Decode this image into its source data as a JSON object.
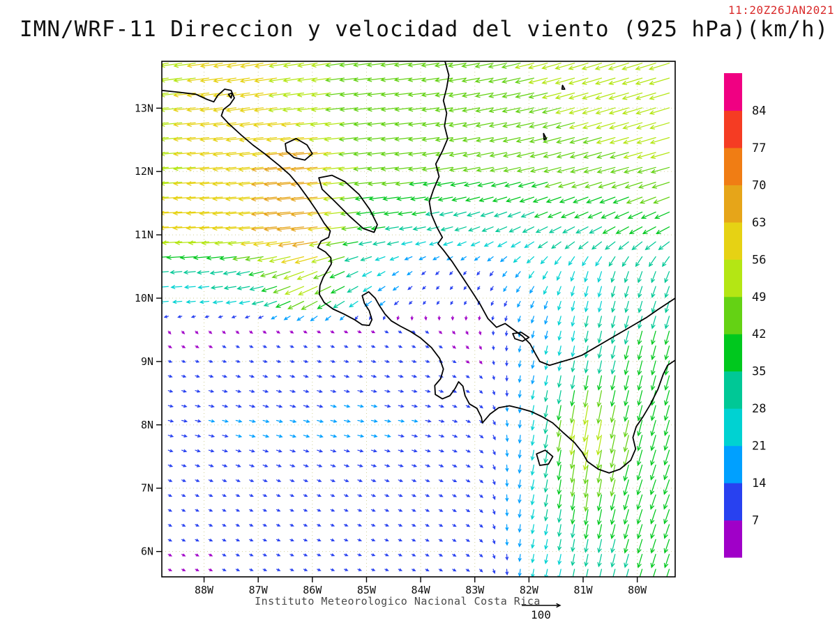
{
  "header": {
    "title": "IMN/WRF-11 Direccion y velocidad del viento (925 hPa)(km/h)",
    "timestamp": "11:20Z26JAN2021",
    "timestamp_color": "#d92b2b"
  },
  "footer": {
    "institute": "Instituto Meteorologico Nacional Costa Rica",
    "reference_value": "100"
  },
  "chart_data": {
    "type": "vector_field_map",
    "title": "IMN/WRF-11 Direccion y velocidad del viento (925 hPa)(km/h)",
    "valid_time": "11:20Z26JAN2021",
    "units": "km/h",
    "reference_speed_kmh": 100,
    "domain": {
      "lon_min": -88.78,
      "lon_max": -79.3,
      "lat_min": 5.6,
      "lat_max": 13.74
    },
    "x_axis": {
      "labels": [
        "88W",
        "87W",
        "86W",
        "85W",
        "84W",
        "83W",
        "82W",
        "81W",
        "80W"
      ],
      "lons": [
        -88,
        -87,
        -86,
        -85,
        -84,
        -83,
        -82,
        -81,
        -80
      ]
    },
    "y_axis": {
      "labels": [
        "13N",
        "12N",
        "11N",
        "10N",
        "9N",
        "8N",
        "7N",
        "6N"
      ],
      "lats": [
        13,
        12,
        11,
        10,
        9,
        8,
        7,
        6
      ]
    },
    "colorbar": {
      "levels": [
        7,
        14,
        21,
        28,
        35,
        42,
        49,
        56,
        63,
        70,
        77,
        84
      ],
      "colors": [
        "#a000c8",
        "#2841f0",
        "#00a0ff",
        "#00d2d2",
        "#00c896",
        "#00c81e",
        "#64d214",
        "#b4e614",
        "#e6d214",
        "#e6a519",
        "#f07d14",
        "#f53c23",
        "#f00082"
      ]
    },
    "wind_grid": {
      "comment": "u=eastward, v=northward wind components in km/h on coarse lat/lon grid, bilinearly interpolated for display",
      "lats": [
        6,
        7,
        8,
        9,
        9.5,
        10,
        10.5,
        11,
        12,
        13,
        14
      ],
      "lons": [
        -89,
        -88,
        -87,
        -86,
        -85,
        -84,
        -83,
        -82,
        -81,
        -80,
        -79
      ],
      "uv": [
        [
          [
            6,
            -3
          ],
          [
            6,
            -3
          ],
          [
            7,
            -3
          ],
          [
            7,
            -3
          ],
          [
            8,
            -3
          ],
          [
            8,
            -4
          ],
          [
            8,
            -5
          ],
          [
            -4,
            -20
          ],
          [
            -6,
            -30
          ],
          [
            -10,
            -34
          ],
          [
            -12,
            -34
          ]
        ],
        [
          [
            8,
            -4
          ],
          [
            9,
            -4
          ],
          [
            9,
            -4
          ],
          [
            9,
            -4
          ],
          [
            10,
            -4
          ],
          [
            9,
            -4
          ],
          [
            9,
            -5
          ],
          [
            -5,
            -24
          ],
          [
            -6,
            -44
          ],
          [
            -12,
            -38
          ],
          [
            -14,
            -36
          ]
        ],
        [
          [
            12,
            -3
          ],
          [
            14,
            -3
          ],
          [
            15,
            -4
          ],
          [
            15,
            -4
          ],
          [
            15,
            -3
          ],
          [
            14,
            -3
          ],
          [
            10,
            -5
          ],
          [
            -4,
            -22
          ],
          [
            -10,
            -58
          ],
          [
            -10,
            -40
          ],
          [
            -12,
            -38
          ]
        ],
        [
          [
            8,
            -3
          ],
          [
            9,
            -3
          ],
          [
            10,
            -3
          ],
          [
            10,
            -3
          ],
          [
            11,
            -3
          ],
          [
            10,
            -3
          ],
          [
            5,
            -4
          ],
          [
            -4,
            -18
          ],
          [
            -6,
            -30
          ],
          [
            -9,
            -36
          ],
          [
            -10,
            -36
          ]
        ],
        [
          [
            2,
            -3
          ],
          [
            3,
            -3
          ],
          [
            4,
            -3
          ],
          [
            5,
            -3
          ],
          [
            6,
            -3
          ],
          [
            6,
            -4
          ],
          [
            2,
            -5
          ],
          [
            -4,
            -16
          ],
          [
            -6,
            -28
          ],
          [
            -9,
            -34
          ],
          [
            -10,
            -34
          ]
        ],
        [
          [
            -26,
            -2
          ],
          [
            -25,
            -2
          ],
          [
            -30,
            -6
          ],
          [
            -48,
            -24
          ],
          [
            -20,
            -14
          ],
          [
            -6,
            -6
          ],
          [
            -4,
            -7
          ],
          [
            -8,
            -16
          ],
          [
            -6,
            -26
          ],
          [
            -8,
            -28
          ],
          [
            -10,
            -28
          ]
        ],
        [
          [
            -30,
            -2
          ],
          [
            -30,
            -3
          ],
          [
            -35,
            -8
          ],
          [
            -55,
            -20
          ],
          [
            -25,
            -12
          ],
          [
            -10,
            -8
          ],
          [
            -6,
            -8
          ],
          [
            -14,
            -16
          ],
          [
            -8,
            -26
          ],
          [
            -10,
            -28
          ],
          [
            -12,
            -28
          ]
        ],
        [
          [
            -56,
            -3
          ],
          [
            -58,
            -3
          ],
          [
            -62,
            -5
          ],
          [
            -70,
            -8
          ],
          [
            -35,
            -5
          ],
          [
            -30,
            -6
          ],
          [
            -26,
            -10
          ],
          [
            -26,
            -14
          ],
          [
            -28,
            -16
          ],
          [
            -30,
            -18
          ],
          [
            -32,
            -18
          ]
        ],
        [
          [
            -55,
            -4
          ],
          [
            -56,
            -4
          ],
          [
            -62,
            -6
          ],
          [
            -70,
            -6
          ],
          [
            -46,
            -5
          ],
          [
            -44,
            -5
          ],
          [
            -42,
            -8
          ],
          [
            -42,
            -10
          ],
          [
            -44,
            -12
          ],
          [
            -46,
            -13
          ],
          [
            -46,
            -13
          ]
        ],
        [
          [
            -55,
            -6
          ],
          [
            -56,
            -6
          ],
          [
            -60,
            -8
          ],
          [
            -52,
            -6
          ],
          [
            -45,
            -5
          ],
          [
            -44,
            -5
          ],
          [
            -44,
            -8
          ],
          [
            -46,
            -10
          ],
          [
            -48,
            -14
          ],
          [
            -50,
            -15
          ],
          [
            -50,
            -15
          ]
        ],
        [
          [
            -55,
            -8
          ],
          [
            -55,
            -8
          ],
          [
            -58,
            -10
          ],
          [
            -50,
            -8
          ],
          [
            -46,
            -6
          ],
          [
            -45,
            -6
          ],
          [
            -46,
            -8
          ],
          [
            -48,
            -12
          ],
          [
            -50,
            -15
          ],
          [
            -52,
            -16
          ],
          [
            -52,
            -16
          ]
        ]
      ]
    }
  },
  "map": {
    "coastlines": [
      [
        [
          -88.78,
          13.28
        ],
        [
          -88.45,
          13.25
        ],
        [
          -88.15,
          13.22
        ],
        [
          -87.95,
          13.14
        ],
        [
          -87.82,
          13.1
        ],
        [
          -87.75,
          13.2
        ],
        [
          -87.62,
          13.3
        ],
        [
          -87.5,
          13.28
        ],
        [
          -87.44,
          13.16
        ],
        [
          -87.52,
          13.06
        ],
        [
          -87.64,
          12.98
        ],
        [
          -87.68,
          12.88
        ],
        [
          -87.55,
          12.76
        ],
        [
          -87.32,
          12.58
        ],
        [
          -87.1,
          12.42
        ],
        [
          -86.88,
          12.28
        ],
        [
          -86.62,
          12.1
        ],
        [
          -86.42,
          11.95
        ],
        [
          -86.25,
          11.78
        ],
        [
          -86.08,
          11.58
        ],
        [
          -85.92,
          11.38
        ],
        [
          -85.78,
          11.18
        ],
        [
          -85.67,
          11.06
        ],
        [
          -85.7,
          10.96
        ],
        [
          -85.84,
          10.9
        ],
        [
          -85.9,
          10.8
        ],
        [
          -85.76,
          10.73
        ],
        [
          -85.66,
          10.64
        ],
        [
          -85.65,
          10.54
        ],
        [
          -85.72,
          10.44
        ],
        [
          -85.8,
          10.33
        ],
        [
          -85.86,
          10.2
        ],
        [
          -85.87,
          10.06
        ],
        [
          -85.78,
          9.93
        ],
        [
          -85.62,
          9.83
        ],
        [
          -85.42,
          9.75
        ],
        [
          -85.22,
          9.66
        ],
        [
          -85.08,
          9.58
        ],
        [
          -84.95,
          9.57
        ],
        [
          -84.9,
          9.66
        ],
        [
          -84.95,
          9.8
        ],
        [
          -85.04,
          9.92
        ],
        [
          -85.08,
          10.04
        ],
        [
          -84.96,
          10.1
        ],
        [
          -84.84,
          10.0
        ],
        [
          -84.76,
          9.88
        ],
        [
          -84.66,
          9.75
        ],
        [
          -84.54,
          9.64
        ],
        [
          -84.38,
          9.56
        ],
        [
          -84.2,
          9.48
        ],
        [
          -84.0,
          9.37
        ],
        [
          -83.8,
          9.22
        ],
        [
          -83.65,
          9.05
        ],
        [
          -83.58,
          8.88
        ],
        [
          -83.63,
          8.73
        ],
        [
          -83.74,
          8.62
        ],
        [
          -83.73,
          8.48
        ],
        [
          -83.6,
          8.41
        ],
        [
          -83.46,
          8.46
        ],
        [
          -83.36,
          8.58
        ],
        [
          -83.3,
          8.68
        ],
        [
          -83.22,
          8.61
        ],
        [
          -83.18,
          8.46
        ],
        [
          -83.1,
          8.33
        ],
        [
          -82.96,
          8.26
        ],
        [
          -82.88,
          8.12
        ],
        [
          -82.86,
          8.03
        ],
        [
          -82.72,
          8.17
        ],
        [
          -82.56,
          8.27
        ],
        [
          -82.36,
          8.3
        ],
        [
          -82.16,
          8.26
        ],
        [
          -81.96,
          8.21
        ],
        [
          -81.76,
          8.13
        ],
        [
          -81.56,
          8.03
        ],
        [
          -81.36,
          7.87
        ],
        [
          -81.16,
          7.72
        ],
        [
          -81.02,
          7.57
        ],
        [
          -80.92,
          7.42
        ],
        [
          -80.72,
          7.3
        ],
        [
          -80.52,
          7.24
        ],
        [
          -80.32,
          7.3
        ],
        [
          -80.12,
          7.44
        ],
        [
          -80.03,
          7.62
        ],
        [
          -80.08,
          7.8
        ],
        [
          -80.02,
          7.97
        ],
        [
          -79.9,
          8.12
        ],
        [
          -79.76,
          8.32
        ],
        [
          -79.62,
          8.56
        ],
        [
          -79.52,
          8.8
        ],
        [
          -79.44,
          8.94
        ],
        [
          -79.3,
          9.02
        ]
      ],
      [
        [
          -83.55,
          13.74
        ],
        [
          -83.48,
          13.52
        ],
        [
          -83.52,
          13.32
        ],
        [
          -83.58,
          13.12
        ],
        [
          -83.52,
          12.92
        ],
        [
          -83.56,
          12.72
        ],
        [
          -83.5,
          12.52
        ],
        [
          -83.6,
          12.32
        ],
        [
          -83.72,
          12.12
        ],
        [
          -83.66,
          11.92
        ],
        [
          -83.76,
          11.72
        ],
        [
          -83.84,
          11.52
        ],
        [
          -83.8,
          11.32
        ],
        [
          -83.7,
          11.12
        ],
        [
          -83.6,
          10.96
        ],
        [
          -83.68,
          10.86
        ],
        [
          -83.58,
          10.76
        ],
        [
          -83.42,
          10.58
        ],
        [
          -83.22,
          10.32
        ],
        [
          -83.02,
          10.06
        ],
        [
          -82.9,
          9.9
        ],
        [
          -82.76,
          9.68
        ],
        [
          -82.6,
          9.54
        ],
        [
          -82.44,
          9.6
        ],
        [
          -82.28,
          9.5
        ],
        [
          -82.12,
          9.4
        ],
        [
          -81.98,
          9.28
        ],
        [
          -81.88,
          9.12
        ],
        [
          -81.8,
          9.0
        ],
        [
          -81.62,
          8.94
        ],
        [
          -81.42,
          8.99
        ],
        [
          -81.22,
          9.04
        ],
        [
          -81.02,
          9.1
        ],
        [
          -80.82,
          9.2
        ],
        [
          -80.62,
          9.3
        ],
        [
          -80.42,
          9.4
        ],
        [
          -80.22,
          9.5
        ],
        [
          -80.02,
          9.6
        ],
        [
          -79.82,
          9.7
        ],
        [
          -79.62,
          9.82
        ],
        [
          -79.44,
          9.92
        ],
        [
          -79.3,
          10.0
        ]
      ]
    ],
    "islands_lakes": [
      [
        [
          -85.88,
          11.9
        ],
        [
          -85.64,
          11.94
        ],
        [
          -85.4,
          11.84
        ],
        [
          -85.14,
          11.64
        ],
        [
          -84.94,
          11.4
        ],
        [
          -84.8,
          11.16
        ],
        [
          -84.86,
          11.04
        ],
        [
          -85.06,
          11.1
        ],
        [
          -85.32,
          11.3
        ],
        [
          -85.6,
          11.54
        ],
        [
          -85.82,
          11.72
        ]
      ],
      [
        [
          -86.5,
          12.44
        ],
        [
          -86.3,
          12.52
        ],
        [
          -86.1,
          12.42
        ],
        [
          -86.0,
          12.28
        ],
        [
          -86.14,
          12.18
        ],
        [
          -86.34,
          12.22
        ],
        [
          -86.48,
          12.32
        ]
      ],
      [
        [
          -81.86,
          7.54
        ],
        [
          -81.7,
          7.6
        ],
        [
          -81.56,
          7.5
        ],
        [
          -81.64,
          7.38
        ],
        [
          -81.8,
          7.36
        ]
      ],
      [
        [
          -81.73,
          12.6
        ],
        [
          -81.68,
          12.52
        ],
        [
          -81.72,
          12.5
        ]
      ],
      [
        [
          -81.38,
          13.36
        ],
        [
          -81.34,
          13.3
        ],
        [
          -81.39,
          13.3
        ]
      ],
      [
        [
          -82.3,
          9.44
        ],
        [
          -82.14,
          9.46
        ],
        [
          -82.0,
          9.38
        ],
        [
          -82.12,
          9.32
        ],
        [
          -82.26,
          9.36
        ]
      ],
      [
        [
          -87.55,
          13.22
        ],
        [
          -87.48,
          13.24
        ],
        [
          -87.5,
          13.16
        ]
      ]
    ]
  }
}
